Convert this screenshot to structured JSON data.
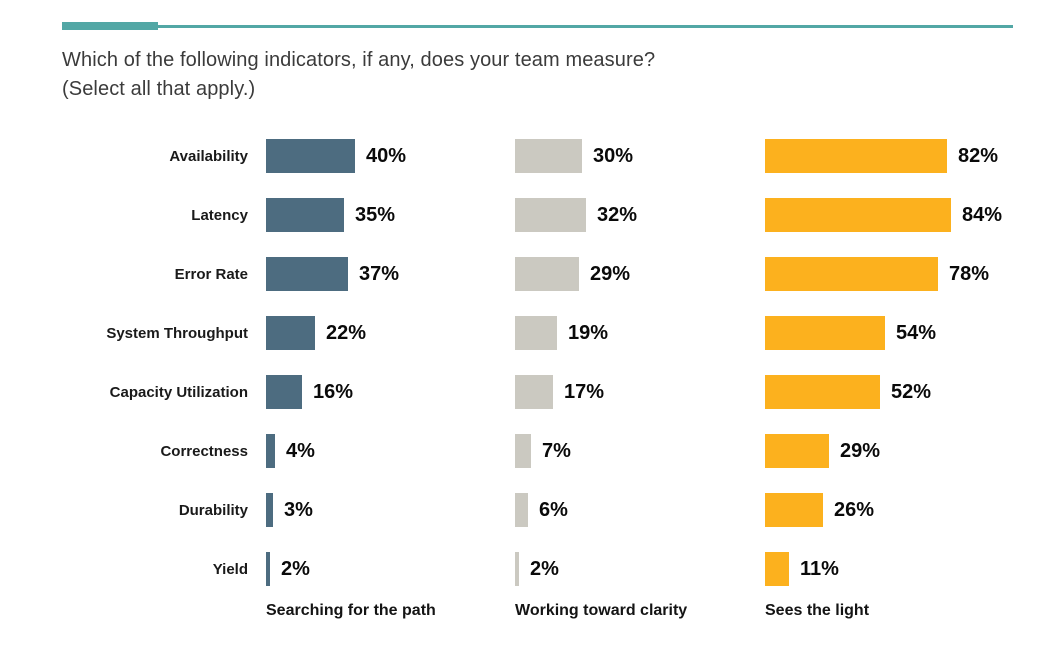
{
  "header": {
    "title_line1": "Which of the following indicators, if any, does your team measure?",
    "title_line2": "(Select all that apply.)"
  },
  "colors": {
    "accent": "#52A7A5",
    "series1": "#4D6C80",
    "series2": "#CBC9C1",
    "series3": "#FCB11E"
  },
  "chart_data": {
    "type": "bar",
    "orientation": "horizontal",
    "title": "Which of the following indicators, if any, does your team measure? (Select all that apply.)",
    "categories": [
      "Availability",
      "Latency",
      "Error Rate",
      "System Throughput",
      "Capacity Utilization",
      "Correctness",
      "Durability",
      "Yield"
    ],
    "series": [
      {
        "name": "Searching for the path",
        "color": "#4D6C80",
        "values": [
          40,
          35,
          37,
          22,
          16,
          4,
          3,
          2
        ]
      },
      {
        "name": "Working toward clarity",
        "color": "#CBC9C1",
        "values": [
          30,
          32,
          29,
          19,
          17,
          7,
          6,
          2
        ]
      },
      {
        "name": "Sees the light",
        "color": "#FCB11E",
        "values": [
          82,
          84,
          78,
          54,
          52,
          29,
          26,
          11
        ]
      }
    ],
    "value_suffix": "%",
    "xlim": [
      0,
      100
    ],
    "grid": false,
    "axis_ticks": "none",
    "legend_position": "bottom"
  }
}
